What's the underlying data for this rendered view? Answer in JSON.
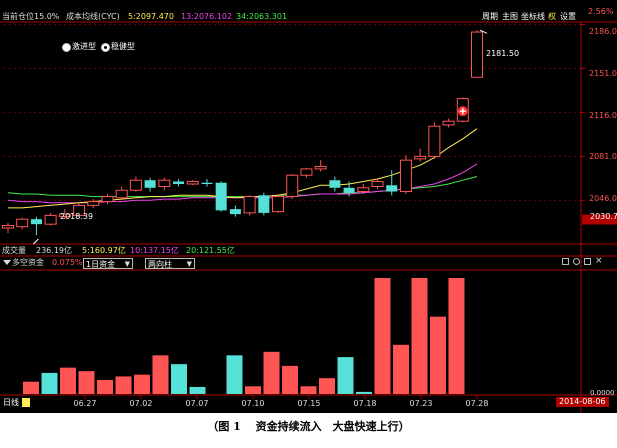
{
  "header": {
    "position_label": "当前仓位15.0%",
    "cost_label": "成本均线(CYC)",
    "cyc5": "5:2097.470",
    "cyc13": "13:2076.102",
    "cyc34": "34:2063.301",
    "btn_period": "周期",
    "btn_main": "主图",
    "btn_coord": "坐标线",
    "btn_right": "权",
    "btn_settings": "设置",
    "corner_value": "2.56%"
  },
  "options": {
    "aggressive": "激进型",
    "stable": "稳健型",
    "selected": "稳健型"
  },
  "price_axis": {
    "ticks": [
      "2186.0",
      "2151.0",
      "2116.0",
      "2081.0",
      "2046.0"
    ],
    "current": "2030.7"
  },
  "annotations": {
    "high": "2181.50",
    "low": "2018.39"
  },
  "volume": {
    "label": "成交量",
    "value": "236.19亿",
    "ma5": "5:160.97亿",
    "ma10": "10:137.15亿",
    "ma20": "20:121.55亿"
  },
  "capital": {
    "label": "多空资金",
    "pct": "0.075%",
    "select1": "1日资金",
    "select2": "两向柱",
    "right_value": "0.0000"
  },
  "bottom": {
    "period_label": "日线",
    "date_badge": "2014-08-06"
  },
  "colors": {
    "up": "#ff5555",
    "down": "#55e0d8",
    "ma5": "#ffee55",
    "ma13": "#ee44ee",
    "ma34": "#44ee44",
    "axis_red": "#b00000"
  },
  "chart_data": {
    "type": "candlestick",
    "x_ticks": [
      "06.27",
      "07.02",
      "07.07",
      "07.10",
      "07.15",
      "07.18",
      "07.23",
      "07.28"
    ],
    "candles": [
      {
        "o": 2024,
        "c": 2026,
        "h": 2028,
        "l": 2020
      },
      {
        "o": 2025,
        "c": 2031,
        "h": 2032,
        "l": 2023
      },
      {
        "o": 2031,
        "c": 2027,
        "h": 2033,
        "l": 2018.39
      },
      {
        "o": 2027,
        "c": 2034,
        "h": 2036,
        "l": 2026
      },
      {
        "o": 2033,
        "c": 2035,
        "h": 2039,
        "l": 2031
      },
      {
        "o": 2034,
        "c": 2042,
        "h": 2044,
        "l": 2033
      },
      {
        "o": 2042,
        "c": 2045,
        "h": 2047,
        "l": 2040
      },
      {
        "o": 2045,
        "c": 2049,
        "h": 2051,
        "l": 2043
      },
      {
        "o": 2048,
        "c": 2054,
        "h": 2057,
        "l": 2047
      },
      {
        "o": 2054,
        "c": 2062,
        "h": 2065,
        "l": 2053
      },
      {
        "o": 2062,
        "c": 2056,
        "h": 2064,
        "l": 2053
      },
      {
        "o": 2057,
        "c": 2062,
        "h": 2064,
        "l": 2054
      },
      {
        "o": 2061,
        "c": 2059,
        "h": 2063,
        "l": 2057
      },
      {
        "o": 2059,
        "c": 2061,
        "h": 2062,
        "l": 2058
      },
      {
        "o": 2060,
        "c": 2059,
        "h": 2063,
        "l": 2057
      },
      {
        "o": 2060,
        "c": 2038,
        "h": 2061,
        "l": 2037
      },
      {
        "o": 2039,
        "c": 2035,
        "h": 2042,
        "l": 2033
      },
      {
        "o": 2036,
        "c": 2049,
        "h": 2050,
        "l": 2034
      },
      {
        "o": 2050,
        "c": 2036,
        "h": 2052,
        "l": 2034
      },
      {
        "o": 2037,
        "c": 2049,
        "h": 2051,
        "l": 2036
      },
      {
        "o": 2049,
        "c": 2066,
        "h": 2067,
        "l": 2047
      },
      {
        "o": 2066,
        "c": 2071,
        "h": 2072,
        "l": 2064
      },
      {
        "o": 2071,
        "c": 2073,
        "h": 2078,
        "l": 2069
      },
      {
        "o": 2062,
        "c": 2056,
        "h": 2065,
        "l": 2053
      },
      {
        "o": 2056,
        "c": 2052,
        "h": 2061,
        "l": 2049
      },
      {
        "o": 2053,
        "c": 2056,
        "h": 2059,
        "l": 2051
      },
      {
        "o": 2057,
        "c": 2061,
        "h": 2063,
        "l": 2055
      },
      {
        "o": 2058,
        "c": 2053,
        "h": 2070,
        "l": 2050
      },
      {
        "o": 2053,
        "c": 2078,
        "h": 2082,
        "l": 2051
      },
      {
        "o": 2079,
        "c": 2081,
        "h": 2087,
        "l": 2077
      },
      {
        "o": 2081,
        "c": 2105,
        "h": 2108,
        "l": 2079
      },
      {
        "o": 2106,
        "c": 2109,
        "h": 2111,
        "l": 2104
      },
      {
        "o": 2109,
        "c": 2127,
        "h": 2128,
        "l": 2108
      },
      {
        "o": 2144,
        "c": 2180,
        "h": 2181.5,
        "l": 2144
      }
    ],
    "ma5": [
      2040,
      2040,
      2041,
      2042,
      2043,
      2044,
      2045,
      2046,
      2047,
      2048,
      2049,
      2049,
      2050,
      2050,
      2050,
      2049,
      2048,
      2049,
      2049,
      2050,
      2052,
      2055,
      2058,
      2058,
      2059,
      2061,
      2063,
      2066,
      2070,
      2074,
      2080,
      2088,
      2095,
      2103
    ],
    "ma13": [
      2046,
      2045,
      2045,
      2044,
      2044,
      2044,
      2044,
      2045,
      2045,
      2046,
      2046,
      2047,
      2047,
      2048,
      2048,
      2048,
      2048,
      2048,
      2048,
      2048,
      2049,
      2050,
      2051,
      2051,
      2051,
      2052,
      2053,
      2054,
      2055,
      2057,
      2059,
      2063,
      2068,
      2075
    ],
    "ma34": [
      2052,
      2051,
      2051,
      2050,
      2050,
      2050,
      2049,
      2049,
      2049,
      2049,
      2049,
      2049,
      2049,
      2049,
      2049,
      2049,
      2049,
      2049,
      2049,
      2050,
      2050,
      2050,
      2051,
      2051,
      2052,
      2052,
      2053,
      2054,
      2055,
      2056,
      2057,
      2059,
      2062,
      2065
    ],
    "capital_bars": [
      {
        "v": 0.35,
        "dir": "up"
      },
      {
        "v": 0.6,
        "dir": "down"
      },
      {
        "v": 0.75,
        "dir": "up"
      },
      {
        "v": 0.65,
        "dir": "up"
      },
      {
        "v": 0.4,
        "dir": "up"
      },
      {
        "v": 0.5,
        "dir": "up"
      },
      {
        "v": 0.55,
        "dir": "up"
      },
      {
        "v": 1.1,
        "dir": "up"
      },
      {
        "v": 0.85,
        "dir": "down"
      },
      {
        "v": 0.2,
        "dir": "down"
      },
      {
        "v": 0.0,
        "dir": "up"
      },
      {
        "v": 1.1,
        "dir": "down"
      },
      {
        "v": 0.22,
        "dir": "up"
      },
      {
        "v": 1.2,
        "dir": "up"
      },
      {
        "v": 0.8,
        "dir": "up"
      },
      {
        "v": 0.22,
        "dir": "up"
      },
      {
        "v": 0.45,
        "dir": "up"
      },
      {
        "v": 1.05,
        "dir": "down"
      },
      {
        "v": 0.06,
        "dir": "down"
      },
      {
        "v": 3.3,
        "dir": "up"
      },
      {
        "v": 1.4,
        "dir": "up"
      },
      {
        "v": 3.3,
        "dir": "up"
      },
      {
        "v": 2.2,
        "dir": "up"
      },
      {
        "v": 3.3,
        "dir": "up"
      }
    ]
  },
  "caption": "（图 1　 资金持续流入　大盘快速上行）"
}
